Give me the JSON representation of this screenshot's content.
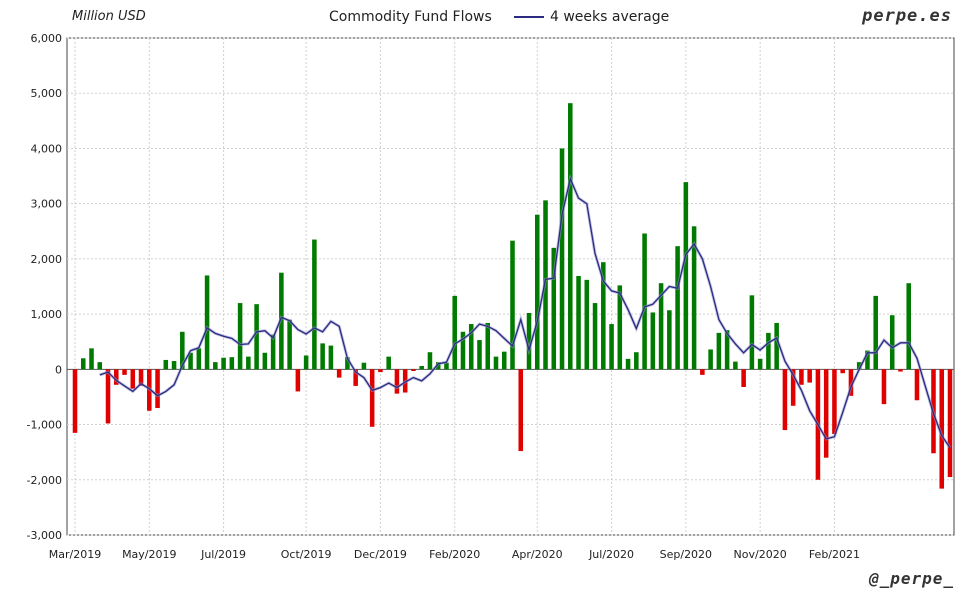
{
  "header": {
    "unit_label": "Million USD",
    "title": "Commodity Fund Flows",
    "brand": "perpe.es",
    "handle": "@_perpe_"
  },
  "chart_data": {
    "type": "bar",
    "title": "Commodity Fund Flows",
    "ylabel": "Million USD",
    "ylim": [
      -3000,
      6000
    ],
    "yticks": [
      -3000,
      -2000,
      -1000,
      0,
      1000,
      2000,
      3000,
      4000,
      5000,
      6000
    ],
    "ytick_labels": [
      "-3,000",
      "-2,000",
      "-1,000",
      "0",
      "1,000",
      "2,000",
      "3,000",
      "4,000",
      "5,000",
      "6,000"
    ],
    "xtick_labels": [
      "Mar/2019",
      "May/2019",
      "Jul/2019",
      "Oct/2019",
      "Dec/2019",
      "Feb/2020",
      "Apr/2020",
      "Jul/2020",
      "Sep/2020",
      "Nov/2020",
      "Feb/2021"
    ],
    "xtick_index": [
      0,
      9,
      18,
      28,
      37,
      46,
      56,
      65,
      74,
      83,
      92
    ],
    "grid": true,
    "positive_color": "#007a00",
    "negative_color": "#e00000",
    "series": [
      {
        "name": "Commodity Fund Flows",
        "values": [
          -1150,
          200,
          380,
          130,
          -980,
          -280,
          -100,
          -350,
          -300,
          -750,
          -700,
          170,
          150,
          680,
          300,
          380,
          1700,
          130,
          210,
          220,
          1200,
          230,
          1180,
          300,
          630,
          1750,
          900,
          -400,
          250,
          2350,
          470,
          430,
          -150,
          220,
          -300,
          120,
          -1040,
          -50,
          230,
          -440,
          -420,
          -30,
          60,
          310,
          130,
          120,
          1330,
          680,
          820,
          530,
          840,
          230,
          320,
          2330,
          -1480,
          1020,
          2800,
          3060,
          2200,
          4000,
          4820,
          1690,
          1620,
          1200,
          1940,
          820,
          1520,
          190,
          310,
          2460,
          1030,
          1560,
          1070,
          2230,
          3390,
          2590,
          -100,
          360,
          660,
          710,
          140,
          -320,
          1340,
          190,
          660,
          840,
          -1100,
          -660,
          -280,
          -240,
          -2000,
          -1600,
          -1170,
          -70,
          -480,
          130,
          340,
          1330,
          -630,
          980,
          -40,
          1560,
          -560,
          0,
          -1520,
          -2160,
          -1950
        ]
      },
      {
        "name": "4 weeks average",
        "color": "#2a2a80",
        "values": [
          null,
          null,
          null,
          -100,
          -50,
          -200,
          -300,
          -400,
          -260,
          -350,
          -480,
          -400,
          -280,
          70,
          340,
          390,
          750,
          650,
          600,
          560,
          450,
          460,
          680,
          700,
          570,
          940,
          880,
          720,
          640,
          750,
          680,
          870,
          780,
          200,
          -50,
          -150,
          -380,
          -330,
          -250,
          -330,
          -230,
          -150,
          -210,
          -80,
          100,
          130,
          460,
          550,
          660,
          820,
          780,
          700,
          560,
          420,
          900,
          350,
          870,
          1630,
          1650,
          2800,
          3450,
          3100,
          3000,
          2100,
          1600,
          1420,
          1380,
          1080,
          740,
          1130,
          1180,
          1340,
          1500,
          1470,
          2080,
          2270,
          2000,
          1500,
          900,
          650,
          460,
          300,
          450,
          350,
          480,
          570,
          150,
          -100,
          -380,
          -750,
          -1000,
          -1260,
          -1220,
          -780,
          -320,
          0,
          300,
          300,
          530,
          390,
          480,
          480,
          200,
          -300,
          -800,
          -1200,
          -1420
        ]
      }
    ]
  }
}
